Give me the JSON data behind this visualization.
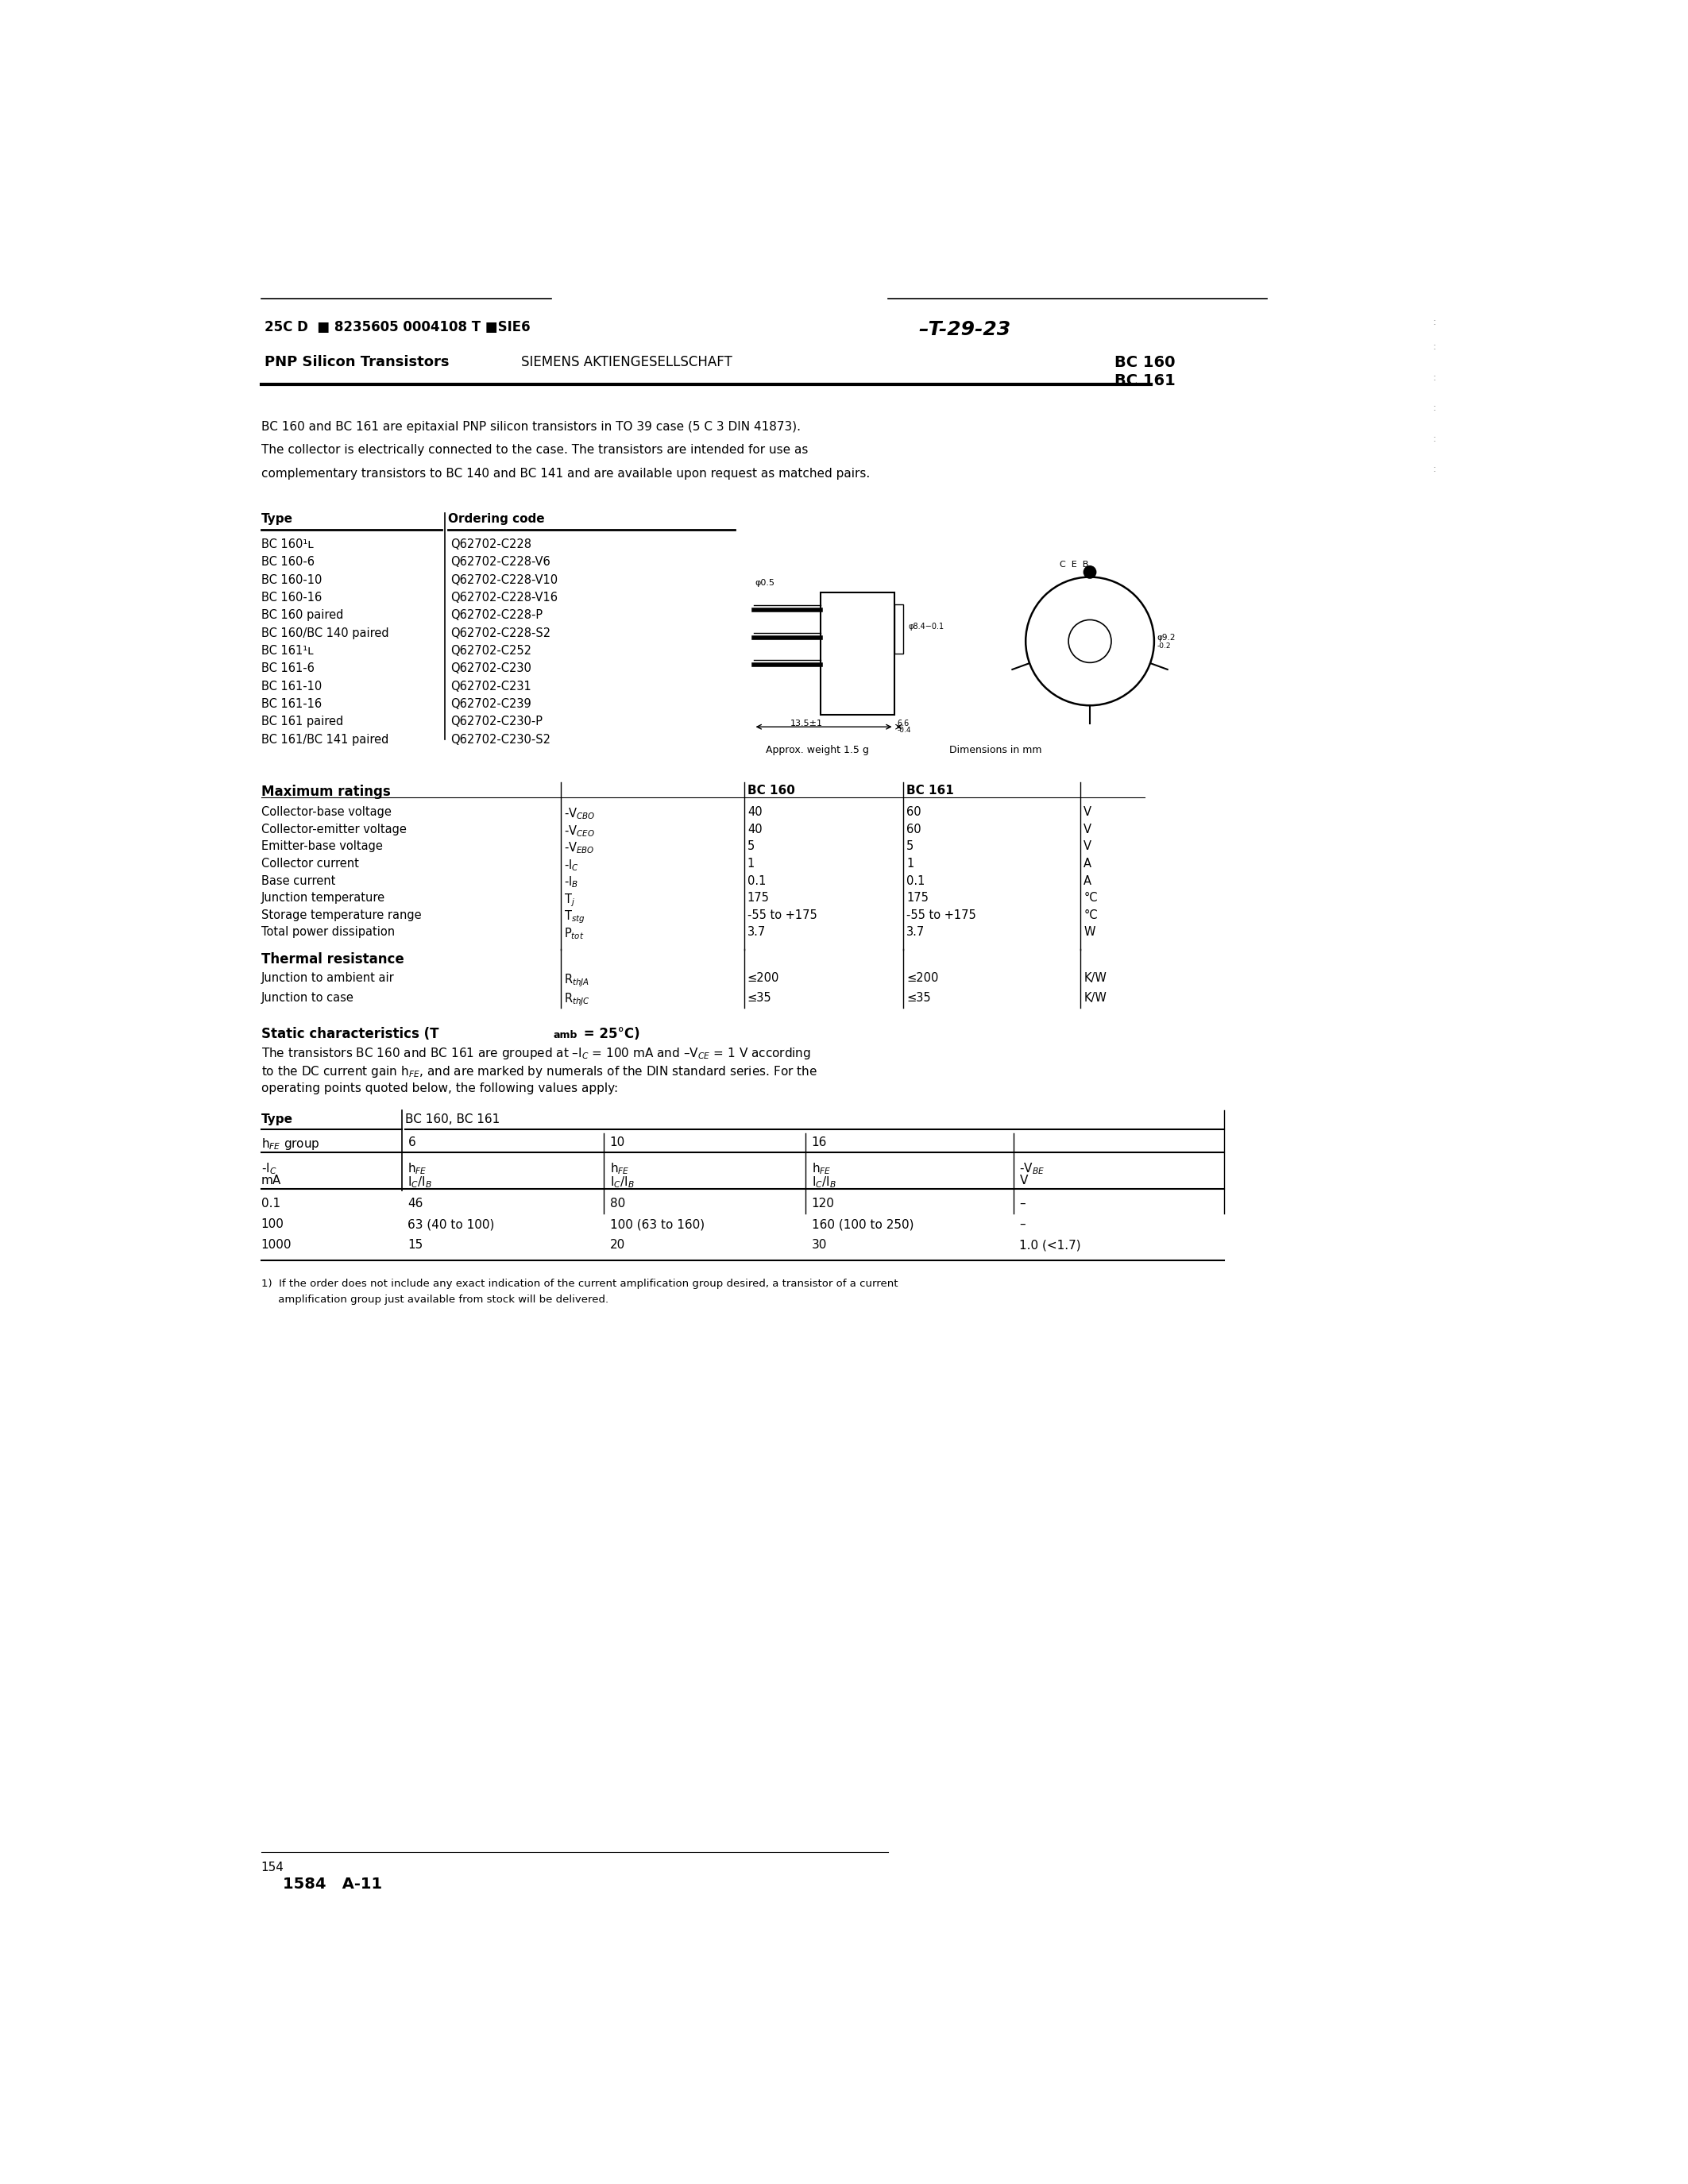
{
  "bg_color": "#ffffff",
  "page_width": 21.25,
  "page_height": 27.5,
  "barcode_line": "25C D  ■ 8235605 0004108 T ■SIE6",
  "ref_line": "–T-29-23",
  "title_left": "PNP Silicon Transistors",
  "title_company": "SIEMENS AKTIENGESELLSCHAFT",
  "title_right1": "BC 160",
  "title_right2": "BC 161",
  "intro_lines": [
    "BC 160 and BC 161 are epitaxial PNP silicon transistors in TO 39 case (5 C 3 DIN 41873).",
    "The collector is electrically connected to the case. The transistors are intended for use as",
    "complementary transistors to BC 140 and BC 141 and are available upon request as matched pairs."
  ],
  "ordering_types": [
    "BC 160¹ʟ",
    "BC 160-6",
    "BC 160-10",
    "BC 160-16",
    "BC 160 paired",
    "BC 160/BC 140 paired",
    "BC 161¹ʟ",
    "BC 161-6",
    "BC 161-10",
    "BC 161-16",
    "BC 161 paired",
    "BC 161/BC 141 paired"
  ],
  "ordering_codes": [
    "Q62702-C228",
    "Q62702-C228-V6",
    "Q62702-C228-V10",
    "Q62702-C228-V16",
    "Q62702-C228-P",
    "Q62702-C228-S2",
    "Q62702-C252",
    "Q62702-C230",
    "Q62702-C231",
    "Q62702-C239",
    "Q62702-C230-P",
    "Q62702-C230-S2"
  ],
  "max_params": [
    "Collector-base voltage",
    "Collector-emitter voltage",
    "Emitter-base voltage",
    "Collector current",
    "Base current",
    "Junction temperature",
    "Storage temperature range",
    "Total power dissipation"
  ],
  "max_syms": [
    "-V₀₀₀",
    "-V₀₀₀",
    "-V₀₀₀",
    "-I₀",
    "-I₀",
    "T₀",
    "T₀₀₀",
    "P₀₀₀"
  ],
  "max_syms_render": [
    "-V$_{CBO}$",
    "-V$_{CEO}$",
    "-V$_{EBO}$",
    "-I$_C$",
    "-I$_B$",
    "T$_j$",
    "T$_{stg}$",
    "P$_{tot}$"
  ],
  "max_bc160": [
    "40",
    "40",
    "5",
    "1",
    "0.1",
    "175",
    "-55 to +175",
    "3.7"
  ],
  "max_bc161": [
    "60",
    "60",
    "5",
    "1",
    "0.1",
    "175",
    "-55 to +175",
    "3.7"
  ],
  "max_units": [
    "V",
    "V",
    "V",
    "A",
    "A",
    "°C",
    "°C",
    "W"
  ],
  "thermal_params": [
    "Junction to ambient air",
    "Junction to case"
  ],
  "thermal_syms": [
    "R$_{thJA}$",
    "R$_{thJC}$"
  ],
  "thermal_bc160": [
    "≤200",
    "≤35"
  ],
  "thermal_bc161": [
    "≤200",
    "≤35"
  ],
  "thermal_units": [
    "K/W",
    "K/W"
  ],
  "hfe_rows": [
    [
      "0.1",
      "46",
      "80",
      "120",
      "–"
    ],
    [
      "100",
      "63 (40 to 100)",
      "100 (63 to 160)",
      "160 (100 to 250)",
      "–"
    ],
    [
      "1000",
      "15",
      "20",
      "30",
      "1.0 (<1.7)"
    ]
  ],
  "footnote_lines": [
    "1)  If the order does not include any exact indication of the current amplification group desired, a transistor of a current",
    "     amplification group just available from stock will be delivered."
  ],
  "footer_page": "154",
  "footer_code": "1584   A-11"
}
